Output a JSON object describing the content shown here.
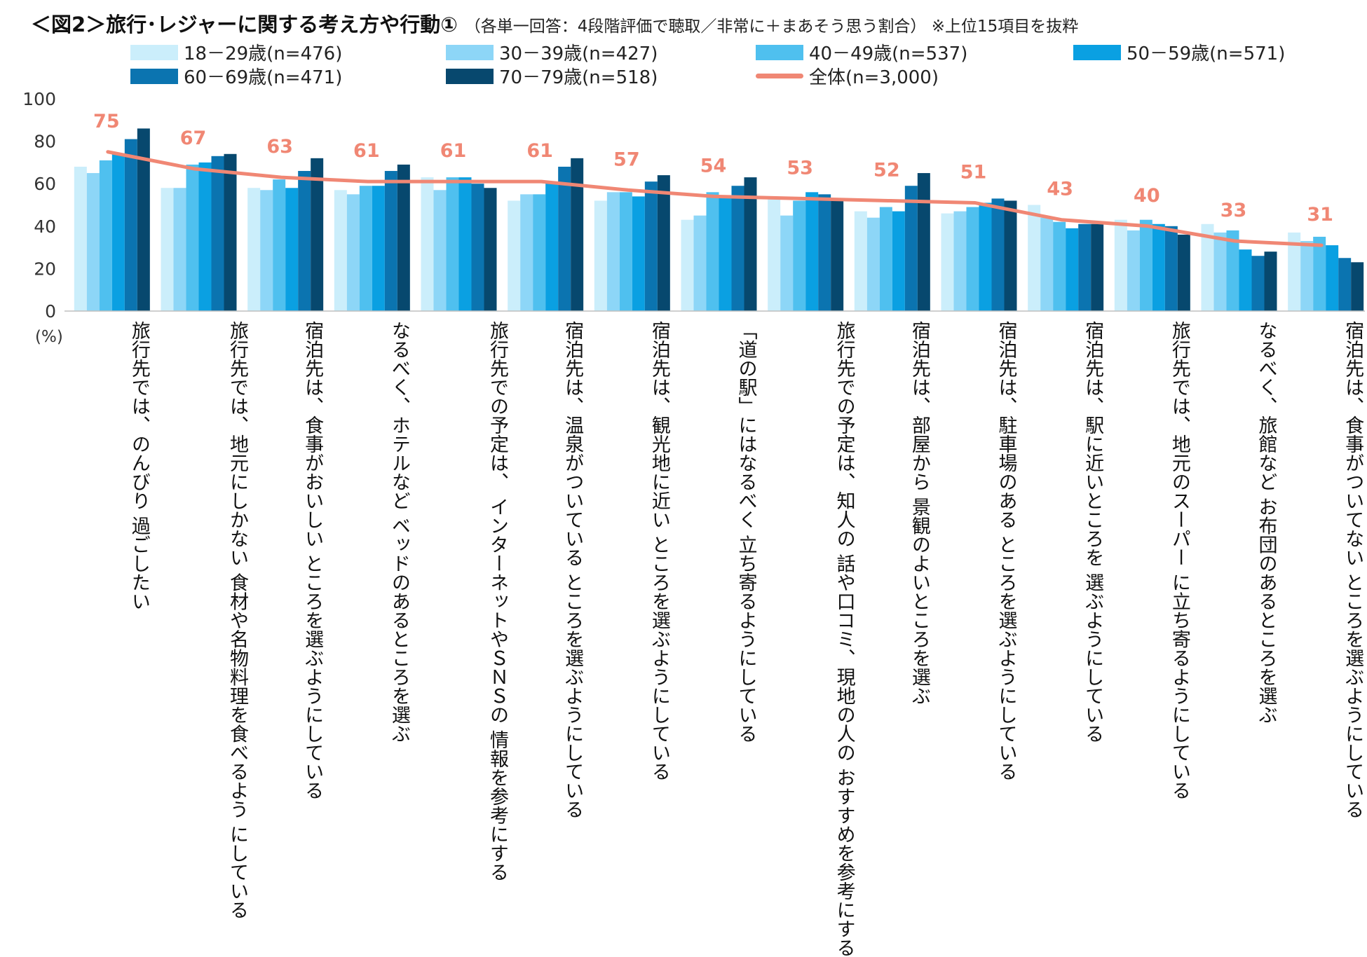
{
  "header": {
    "title": "＜図2＞旅行･レジャーに関する考え方や行動①",
    "subtitle": "（各単一回答：4段階評価で聴取／非常に＋まあそう思う割合） ※上位15項目を抜粋"
  },
  "axis": {
    "unit_label": "(%)"
  },
  "colors": {
    "s1": "#cbeefb",
    "s2": "#8dd6f7",
    "s3": "#4fc0ef",
    "s4": "#0aa0e2",
    "s5": "#0b74b0",
    "s6": "#07486e",
    "total": "#f08774"
  },
  "chart_data": {
    "type": "bar",
    "title": "旅行･レジャーに関する考え方や行動①",
    "ylabel": "(%)",
    "ylim": [
      0,
      100
    ],
    "yticks": [
      0,
      20,
      40,
      60,
      80,
      100
    ],
    "grid": false,
    "legend": "top",
    "categories": [
      "旅行先では、のんびり\n過ごしたい",
      "旅行先では、地元にしかない\n食材や名物料理を食べるよう\nにしている",
      "宿泊先は、食事がおいしい\nところを選ぶようにしている",
      "なるべく、ホテルなど\nベッドのあるところを選ぶ",
      "旅行先での予定は、\nインターネットやＳＮＳの\n情報を参考にする",
      "宿泊先は、温泉がついている\nところを選ぶようにしている",
      "宿泊先は、観光地に近い\nところを選ぶようにしている",
      "「道の駅」にはなるべく\n立ち寄るようにしている",
      "旅行先での予定は、知人の\n話や口コミ、現地の人の\nおすすめを参考にする",
      "宿泊先は、部屋から\n景観のよいところを選ぶ",
      "宿泊先は、駐車場のある\nところを選ぶようにしている",
      "宿泊先は、駅に近いところを\n選ぶようにしている",
      "旅行先では、地元のスーパー\nに立ち寄るようにしている",
      "なるべく、旅館など\nお布団のあるところを選ぶ",
      "宿泊先は、食事がついてない\nところを選ぶようにしている"
    ],
    "series": [
      {
        "name": "18－29歳(n=476)",
        "values": [
          68,
          58,
          58,
          57,
          63,
          52,
          52,
          43,
          53,
          47,
          46,
          50,
          43,
          41,
          37
        ]
      },
      {
        "name": "30－39歳(n=427)",
        "values": [
          65,
          58,
          57,
          55,
          57,
          55,
          56,
          45,
          45,
          44,
          47,
          44,
          38,
          37,
          33
        ]
      },
      {
        "name": "40－49歳(n=537)",
        "values": [
          71,
          69,
          62,
          59,
          63,
          55,
          56,
          56,
          52,
          49,
          49,
          42,
          43,
          38,
          35
        ]
      },
      {
        "name": "50－59歳(n=571)",
        "values": [
          74,
          70,
          58,
          59,
          63,
          61,
          54,
          54,
          56,
          47,
          51,
          39,
          41,
          29,
          31
        ]
      },
      {
        "name": "60－69歳(n=471)",
        "values": [
          81,
          73,
          66,
          66,
          60,
          68,
          61,
          59,
          55,
          59,
          53,
          41,
          40,
          26,
          25
        ]
      },
      {
        "name": "70－79歳(n=518)",
        "values": [
          86,
          74,
          72,
          69,
          58,
          72,
          64,
          63,
          53,
          65,
          52,
          41,
          36,
          28,
          23
        ]
      }
    ],
    "total": {
      "name": "全体(n=3,000)",
      "values": [
        75,
        67,
        63,
        61,
        61,
        61,
        57,
        54,
        53,
        52,
        51,
        43,
        40,
        33,
        31
      ]
    }
  }
}
